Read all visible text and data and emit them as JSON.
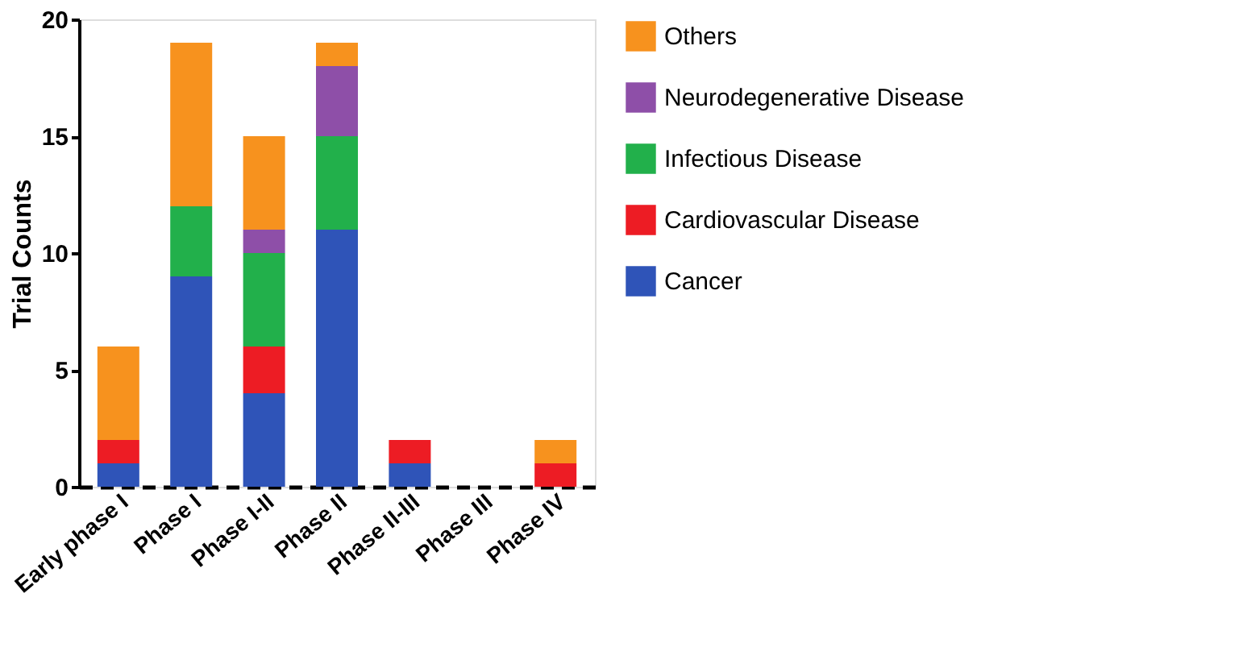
{
  "chart_data": {
    "type": "bar",
    "stacked": true,
    "ylabel": "Trial Counts",
    "categories": [
      "Early phase I",
      "Phase I",
      "Phase I-II",
      "Phase II",
      "Phase II-III",
      "Phase III",
      "Phase IV"
    ],
    "series": [
      {
        "name": "Cancer",
        "color": "#2f54b8",
        "values": [
          1,
          9,
          4,
          11,
          1,
          0,
          0
        ]
      },
      {
        "name": "Cardiovascular Disease",
        "color": "#ed1c24",
        "values": [
          1,
          0,
          2,
          0,
          1,
          0,
          1
        ]
      },
      {
        "name": "Infectious Disease",
        "color": "#22b04b",
        "values": [
          0,
          3,
          4,
          4,
          0,
          0,
          0
        ]
      },
      {
        "name": "Neurodegenerative Disease",
        "color": "#8e4fa8",
        "values": [
          0,
          0,
          1,
          3,
          0,
          0,
          0
        ]
      },
      {
        "name": "Others",
        "color": "#f7921e",
        "values": [
          4,
          7,
          4,
          1,
          0,
          0,
          1
        ]
      }
    ],
    "ylim": [
      0,
      20
    ],
    "yticks": [
      0,
      5,
      10,
      15,
      20
    ],
    "grid": false,
    "legend": "right",
    "line_style": "dashed"
  }
}
